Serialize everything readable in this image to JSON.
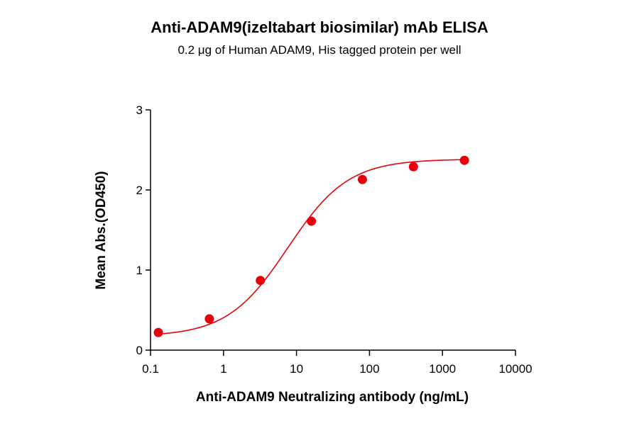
{
  "chart_data": {
    "type": "scatter",
    "title": "Anti-ADAM9(izeltabart biosimilar) mAb ELISA",
    "subtitle": "0.2 μg of Human ADAM9, His tagged protein per well",
    "xlabel": "Anti-ADAM9 Neutralizing antibody (ng/mL)",
    "ylabel": "Mean Abs.(OD450)",
    "x_scale": "log",
    "xlim": [
      0.1,
      10000
    ],
    "ylim": [
      0,
      3
    ],
    "x_ticks": [
      "0.1",
      "1",
      "10",
      "100",
      "1000",
      "10000"
    ],
    "y_ticks": [
      "0",
      "1",
      "2",
      "3"
    ],
    "grid": false,
    "fit_curve": "sigmoidal",
    "series": [
      {
        "color": "#e8000b",
        "x": [
          0.128,
          0.64,
          3.2,
          16,
          80,
          400,
          2000
        ],
        "y": [
          0.22,
          0.39,
          0.87,
          1.61,
          2.13,
          2.29,
          2.37
        ]
      }
    ]
  }
}
